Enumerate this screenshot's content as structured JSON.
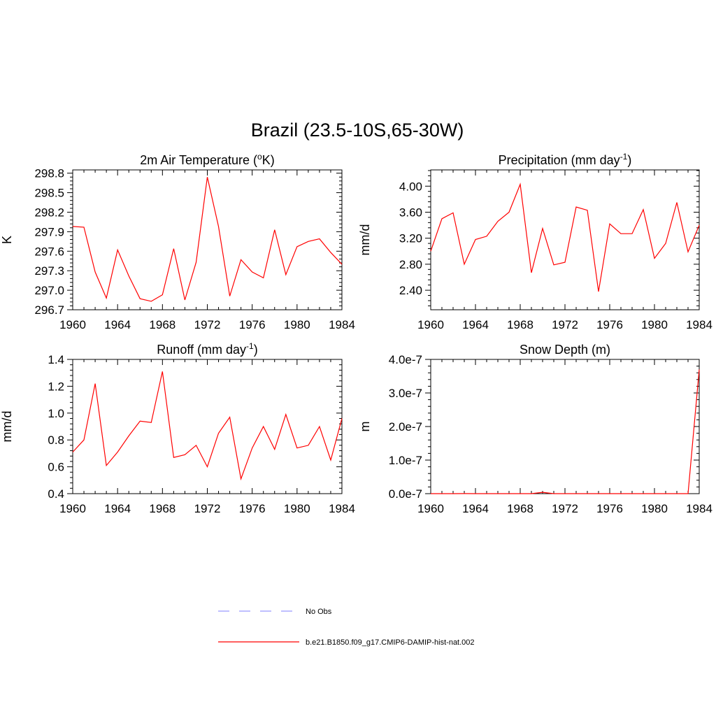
{
  "figure_title": "Brazil (23.5-10S,65-30W)",
  "legend": [
    {
      "label": "No Obs",
      "color": "#9999ff",
      "dash": true
    },
    {
      "label": "b.e21.B1850.f09_g17.CMIP6-DAMIP-hist-nat.002",
      "color": "#ff0000",
      "dash": false
    }
  ],
  "chart_data": [
    {
      "type": "line",
      "title": "2m Air Temperature (",
      "title_sup": "o",
      "title_after": "K)",
      "ylabel": "K",
      "xlim": [
        1960,
        1984
      ],
      "ylim": [
        296.7,
        298.85
      ],
      "x_ticks": [
        "1960",
        "1964",
        "1968",
        "1972",
        "1976",
        "1980",
        "1984"
      ],
      "y_ticks": [
        "296.7",
        "297.0",
        "297.3",
        "297.6",
        "297.9",
        "298.2",
        "298.5",
        "298.8"
      ],
      "y_tick_values": [
        296.7,
        297.0,
        297.3,
        297.6,
        297.9,
        298.2,
        298.5,
        298.8
      ],
      "series": [
        {
          "color": "#ff0000",
          "x": [
            1960,
            1961,
            1962,
            1963,
            1964,
            1965,
            1966,
            1967,
            1968,
            1969,
            1970,
            1971,
            1972,
            1973,
            1974,
            1975,
            1976,
            1977,
            1978,
            1979,
            1980,
            1981,
            1982,
            1983,
            1984
          ],
          "values": [
            297.98,
            297.97,
            297.28,
            296.88,
            297.62,
            297.22,
            296.87,
            296.83,
            296.93,
            297.64,
            296.85,
            297.43,
            298.74,
            297.98,
            296.91,
            297.47,
            297.28,
            297.19,
            297.93,
            297.24,
            297.67,
            297.75,
            297.79,
            297.58,
            297.4
          ]
        }
      ]
    },
    {
      "type": "line",
      "title": "Precipitation (mm day",
      "title_sup": "-1",
      "title_after": ")",
      "ylabel": "mm/d",
      "xlim": [
        1960,
        1984
      ],
      "ylim": [
        2.1,
        4.25
      ],
      "x_ticks": [
        "1960",
        "1964",
        "1968",
        "1972",
        "1976",
        "1980",
        "1984"
      ],
      "y_ticks": [
        "2.40",
        "2.80",
        "3.20",
        "3.60",
        "4.00"
      ],
      "y_tick_values": [
        2.4,
        2.8,
        3.2,
        3.6,
        4.0
      ],
      "series": [
        {
          "color": "#ff0000",
          "x": [
            1960,
            1961,
            1962,
            1963,
            1964,
            1965,
            1966,
            1967,
            1968,
            1969,
            1970,
            1971,
            1972,
            1973,
            1974,
            1975,
            1976,
            1977,
            1978,
            1979,
            1980,
            1981,
            1982,
            1983,
            1984
          ],
          "values": [
            3.0,
            3.5,
            3.59,
            2.8,
            3.18,
            3.23,
            3.46,
            3.6,
            4.03,
            2.67,
            3.35,
            2.79,
            2.83,
            3.68,
            3.63,
            2.38,
            3.42,
            3.27,
            3.27,
            3.64,
            2.89,
            3.12,
            3.75,
            2.99,
            3.4
          ]
        }
      ]
    },
    {
      "type": "line",
      "title": "Runoff (mm day",
      "title_sup": "-1",
      "title_after": ")",
      "ylabel": "mm/d",
      "xlim": [
        1960,
        1984
      ],
      "ylim": [
        0.4,
        1.4
      ],
      "x_ticks": [
        "1960",
        "1964",
        "1968",
        "1972",
        "1976",
        "1980",
        "1984"
      ],
      "y_ticks": [
        "0.4",
        "0.6",
        "0.8",
        "1.0",
        "1.2",
        "1.4"
      ],
      "y_tick_values": [
        0.4,
        0.6,
        0.8,
        1.0,
        1.2,
        1.4
      ],
      "series": [
        {
          "color": "#ff0000",
          "x": [
            1960,
            1961,
            1962,
            1963,
            1964,
            1965,
            1966,
            1967,
            1968,
            1969,
            1970,
            1971,
            1972,
            1973,
            1974,
            1975,
            1976,
            1977,
            1978,
            1979,
            1980,
            1981,
            1982,
            1983,
            1984
          ],
          "values": [
            0.71,
            0.8,
            1.22,
            0.61,
            0.71,
            0.83,
            0.94,
            0.93,
            1.31,
            0.67,
            0.69,
            0.76,
            0.6,
            0.85,
            0.97,
            0.51,
            0.74,
            0.9,
            0.73,
            0.99,
            0.74,
            0.76,
            0.9,
            0.65,
            0.96
          ]
        }
      ]
    },
    {
      "type": "line",
      "title": "Snow Depth (m)",
      "title_sup": "",
      "title_after": "",
      "ylabel": "m",
      "xlim": [
        1960,
        1984
      ],
      "ylim": [
        0,
        4e-07
      ],
      "x_ticks": [
        "1960",
        "1964",
        "1968",
        "1972",
        "1976",
        "1980",
        "1984"
      ],
      "y_ticks": [
        "0.0e-7",
        "1.0e-7",
        "2.0e-7",
        "3.0e-7",
        "4.0e-7"
      ],
      "y_tick_values": [
        0,
        1e-07,
        2e-07,
        3e-07,
        4e-07
      ],
      "series": [
        {
          "color": "#ff0000",
          "x": [
            1960,
            1961,
            1962,
            1963,
            1964,
            1965,
            1966,
            1967,
            1968,
            1969,
            1970,
            1971,
            1972,
            1973,
            1974,
            1975,
            1976,
            1977,
            1978,
            1979,
            1980,
            1981,
            1982,
            1983,
            1984
          ],
          "values": [
            0,
            0,
            0,
            2e-10,
            0,
            0,
            0,
            0,
            0,
            0,
            4e-09,
            0,
            0,
            0,
            0,
            0,
            0,
            0,
            0,
            0,
            0,
            0,
            0,
            0,
            3.7e-07
          ]
        }
      ]
    }
  ]
}
